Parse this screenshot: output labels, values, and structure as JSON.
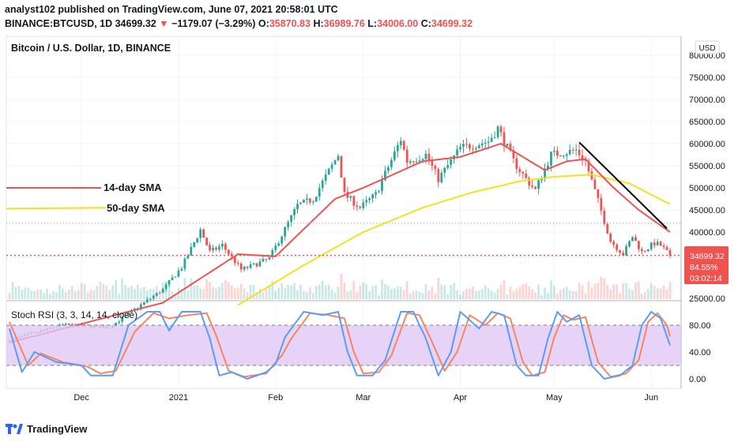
{
  "header": {
    "line1": "analyst102 published on TradingView.com, June 07, 2021 20:58:01 UTC",
    "symbol": "BINANCE:BTCUSD, 1D",
    "last": "34699.32",
    "change": "−1179.07 (−3.29%)",
    "o_label": "O:",
    "o_value": "35870.83",
    "h_label": "H:",
    "h_value": "36989.76",
    "l_label": "L:",
    "l_value": "34006.00",
    "c_label": "C:",
    "c_value": "34699.32"
  },
  "chart_title": "Bitcoin / U.S. Dollar, 1D, BINANCE",
  "currency_button": "USD",
  "price_tag": {
    "price": "34699.32",
    "percent": "84.55%",
    "countdown": "03:02:14"
  },
  "annotations": {
    "sma14": "14-day SMA",
    "sma50": "50-day SMA"
  },
  "stoch_title": "Stoch RSI (3, 3, 14, 14, close)",
  "footer": {
    "brand": "TradingView"
  },
  "colors": {
    "up": "#26a69a",
    "down": "#ef5350",
    "sma14": "#ef5350",
    "sma50": "#f5e11b",
    "stoch_k": "#5b9cf6",
    "stoch_d": "#f7855f",
    "stoch_band": "#e1c8f5",
    "trendline": "#000000",
    "price_tag": "#ef5350"
  },
  "chart_data": [
    {
      "type": "candlestick",
      "title": "Bitcoin / U.S. Dollar, 1D, BINANCE",
      "y_ticks": [
        25000,
        40000,
        45000,
        50000,
        55000,
        60000,
        65000,
        70000,
        75000,
        80000
      ],
      "y_tick_labels": [
        "25000.00",
        "40000.00",
        "45000.00",
        "50000.00",
        "55000.00",
        "60000.00",
        "65000.00",
        "70000.00",
        "75000.00",
        "80000.00"
      ],
      "x_tick_labels": [
        "Dec",
        "2021",
        "Feb",
        "Mar",
        "Apr",
        "May",
        "Jun"
      ],
      "x_tick_dates": [
        "2020-12-01",
        "2021-01-01",
        "2021-02-01",
        "2021-03-01",
        "2021-04-01",
        "2021-05-01",
        "2021-06-01"
      ],
      "date_range": [
        "2020-11-08",
        "2021-06-07"
      ],
      "close_anchors": [
        [
          "2020-11-08",
          15500
        ],
        [
          "2020-11-25",
          19000
        ],
        [
          "2020-12-10",
          18500
        ],
        [
          "2020-12-20",
          23500
        ],
        [
          "2020-12-27",
          27000
        ],
        [
          "2021-01-02",
          32000
        ],
        [
          "2021-01-08",
          40500
        ],
        [
          "2021-01-11",
          35500
        ],
        [
          "2021-01-15",
          37000
        ],
        [
          "2021-01-21",
          31500
        ],
        [
          "2021-01-25",
          32500
        ],
        [
          "2021-01-30",
          34000
        ],
        [
          "2021-02-08",
          46000
        ],
        [
          "2021-02-13",
          47500
        ],
        [
          "2021-02-21",
          57500
        ],
        [
          "2021-02-23",
          48500
        ],
        [
          "2021-02-28",
          45500
        ],
        [
          "2021-03-05",
          48500
        ],
        [
          "2021-03-13",
          61000
        ],
        [
          "2021-03-15",
          56000
        ],
        [
          "2021-03-21",
          57500
        ],
        [
          "2021-03-25",
          52000
        ],
        [
          "2021-04-01",
          59000
        ],
        [
          "2021-04-10",
          60500
        ],
        [
          "2021-04-13",
          63500
        ],
        [
          "2021-04-18",
          56000
        ],
        [
          "2021-04-22",
          52000
        ],
        [
          "2021-04-25",
          49500
        ],
        [
          "2021-04-30",
          57500
        ],
        [
          "2021-05-08",
          58500
        ],
        [
          "2021-05-11",
          56000
        ],
        [
          "2021-05-15",
          47000
        ],
        [
          "2021-05-19",
          38000
        ],
        [
          "2021-05-23",
          35000
        ],
        [
          "2021-05-26",
          39000
        ],
        [
          "2021-05-29",
          35500
        ],
        [
          "2021-06-02",
          37500
        ],
        [
          "2021-06-04",
          37000
        ],
        [
          "2021-06-07",
          34699.32
        ]
      ],
      "sma14_anchors": [
        [
          "2020-11-08",
          15000
        ],
        [
          "2020-12-27",
          24000
        ],
        [
          "2021-01-20",
          35000
        ],
        [
          "2021-02-01",
          34500
        ],
        [
          "2021-02-20",
          47500
        ],
        [
          "2021-03-01",
          50000
        ],
        [
          "2021-03-20",
          56000
        ],
        [
          "2021-04-01",
          57000
        ],
        [
          "2021-04-14",
          60000
        ],
        [
          "2021-04-28",
          54000
        ],
        [
          "2021-05-05",
          56000
        ],
        [
          "2021-05-11",
          56500
        ],
        [
          "2021-05-20",
          50000
        ],
        [
          "2021-05-28",
          45000
        ],
        [
          "2021-06-07",
          40000
        ]
      ],
      "sma50_anchors": [
        [
          "2021-01-20",
          23500
        ],
        [
          "2021-02-10",
          32500
        ],
        [
          "2021-03-01",
          40000
        ],
        [
          "2021-03-20",
          45500
        ],
        [
          "2021-04-05",
          49000
        ],
        [
          "2021-04-20",
          51500
        ],
        [
          "2021-05-01",
          52500
        ],
        [
          "2021-05-13",
          53000
        ],
        [
          "2021-05-25",
          51000
        ],
        [
          "2021-06-07",
          46300
        ]
      ],
      "trendline": {
        "from": [
          "2021-05-09",
          60300
        ],
        "to": [
          "2021-06-06",
          40800
        ]
      },
      "horizontal_levels": [
        34699.32,
        42000
      ],
      "last_price": 34699.32
    },
    {
      "type": "line",
      "title": "Stoch RSI (3, 3, 14, 14, close)",
      "y_ticks": [
        0,
        40,
        80
      ],
      "y_tick_labels": [
        "0.00",
        "40.00",
        "80.00"
      ],
      "band": [
        20,
        80
      ],
      "k_anchors": [
        [
          "2020-11-08",
          75
        ],
        [
          "2020-11-12",
          10
        ],
        [
          "2020-11-16",
          40
        ],
        [
          "2020-11-23",
          25
        ],
        [
          "2020-12-01",
          20
        ],
        [
          "2020-12-04",
          5
        ],
        [
          "2020-12-11",
          5
        ],
        [
          "2020-12-16",
          80
        ],
        [
          "2020-12-22",
          100
        ],
        [
          "2020-12-26",
          100
        ],
        [
          "2020-12-29",
          72
        ],
        [
          "2021-01-02",
          100
        ],
        [
          "2021-01-08",
          100
        ],
        [
          "2021-01-11",
          60
        ],
        [
          "2021-01-14",
          5
        ],
        [
          "2021-01-18",
          10
        ],
        [
          "2021-01-23",
          0
        ],
        [
          "2021-01-29",
          10
        ],
        [
          "2021-02-01",
          22
        ],
        [
          "2021-02-04",
          62
        ],
        [
          "2021-02-10",
          100
        ],
        [
          "2021-02-16",
          95
        ],
        [
          "2021-02-21",
          100
        ],
        [
          "2021-02-24",
          40
        ],
        [
          "2021-02-27",
          5
        ],
        [
          "2021-03-04",
          5
        ],
        [
          "2021-03-08",
          28
        ],
        [
          "2021-03-13",
          100
        ],
        [
          "2021-03-17",
          100
        ],
        [
          "2021-03-21",
          60
        ],
        [
          "2021-03-25",
          5
        ],
        [
          "2021-03-29",
          40
        ],
        [
          "2021-04-01",
          100
        ],
        [
          "2021-04-07",
          75
        ],
        [
          "2021-04-11",
          100
        ],
        [
          "2021-04-15",
          95
        ],
        [
          "2021-04-19",
          20
        ],
        [
          "2021-04-22",
          5
        ],
        [
          "2021-04-26",
          5
        ],
        [
          "2021-04-29",
          60
        ],
        [
          "2021-05-02",
          100
        ],
        [
          "2021-05-05",
          85
        ],
        [
          "2021-05-09",
          95
        ],
        [
          "2021-05-13",
          20
        ],
        [
          "2021-05-17",
          0
        ],
        [
          "2021-05-22",
          5
        ],
        [
          "2021-05-26",
          20
        ],
        [
          "2021-05-29",
          80
        ],
        [
          "2021-06-01",
          100
        ],
        [
          "2021-06-04",
          90
        ],
        [
          "2021-06-07",
          50
        ]
      ],
      "d_anchors": [
        [
          "2020-11-08",
          85
        ],
        [
          "2020-11-14",
          20
        ],
        [
          "2020-11-18",
          38
        ],
        [
          "2020-11-25",
          25
        ],
        [
          "2020-12-03",
          18
        ],
        [
          "2020-12-07",
          8
        ],
        [
          "2020-12-12",
          12
        ],
        [
          "2020-12-18",
          70
        ],
        [
          "2020-12-24",
          98
        ],
        [
          "2020-12-29",
          90
        ],
        [
          "2021-01-04",
          95
        ],
        [
          "2021-01-10",
          98
        ],
        [
          "2021-01-13",
          65
        ],
        [
          "2021-01-17",
          12
        ],
        [
          "2021-01-22",
          3
        ],
        [
          "2021-01-29",
          8
        ],
        [
          "2021-02-03",
          35
        ],
        [
          "2021-02-06",
          60
        ],
        [
          "2021-02-12",
          98
        ],
        [
          "2021-02-18",
          95
        ],
        [
          "2021-02-23",
          90
        ],
        [
          "2021-02-26",
          40
        ],
        [
          "2021-03-01",
          8
        ],
        [
          "2021-03-06",
          10
        ],
        [
          "2021-03-10",
          35
        ],
        [
          "2021-03-15",
          98
        ],
        [
          "2021-03-19",
          95
        ],
        [
          "2021-03-23",
          55
        ],
        [
          "2021-03-27",
          12
        ],
        [
          "2021-03-31",
          40
        ],
        [
          "2021-04-04",
          95
        ],
        [
          "2021-04-09",
          80
        ],
        [
          "2021-04-13",
          98
        ],
        [
          "2021-04-17",
          90
        ],
        [
          "2021-04-21",
          25
        ],
        [
          "2021-04-24",
          5
        ],
        [
          "2021-04-28",
          10
        ],
        [
          "2021-05-01",
          62
        ],
        [
          "2021-05-04",
          95
        ],
        [
          "2021-05-07",
          88
        ],
        [
          "2021-05-11",
          92
        ],
        [
          "2021-05-15",
          25
        ],
        [
          "2021-05-19",
          3
        ],
        [
          "2021-05-24",
          8
        ],
        [
          "2021-05-28",
          28
        ],
        [
          "2021-05-31",
          85
        ],
        [
          "2021-06-03",
          98
        ],
        [
          "2021-06-06",
          80
        ],
        [
          "2021-06-07",
          63
        ]
      ]
    }
  ]
}
